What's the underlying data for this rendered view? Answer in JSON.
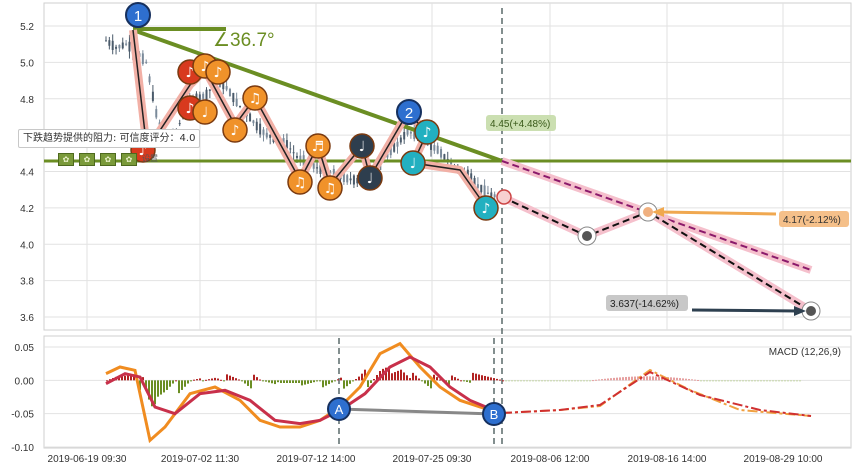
{
  "chart_data": [
    {
      "type": "candlestick",
      "yticks": [
        3.6,
        3.8,
        4.0,
        4.2,
        4.4,
        4.6,
        4.8,
        5.0,
        5.2
      ],
      "ylim": [
        3.52,
        5.27
      ],
      "x_labels": [
        "2019-06-19 09:30",
        "2019-07-02 11:30",
        "2019-07-12 14:00",
        "2019-07-25 09:30",
        "2019-08-06 12:00",
        "2019-08-16 14:00",
        "2019-08-29 10:00"
      ],
      "trend_angle_label": "∠36.7°",
      "resistance_level": 4.45,
      "projections": [
        {
          "label": "4.45(+4.48%)",
          "value": 4.45
        },
        {
          "label": "4.17(-2.12%)",
          "value": 4.17
        },
        {
          "label": "3.637(-14.62%)",
          "value": 3.637
        }
      ],
      "markers": [
        "1",
        "2"
      ],
      "tooltip": "下跌趋势提供的阻力: 可信度评分：4.0",
      "price_series_approx": [
        [
          0,
          5.12
        ],
        [
          1,
          5.08
        ],
        [
          2,
          5.1
        ],
        [
          3,
          5.06
        ],
        [
          4,
          5.0
        ],
        [
          5,
          4.72
        ],
        [
          6,
          4.55
        ],
        [
          7,
          4.62
        ],
        [
          8,
          4.75
        ],
        [
          9,
          4.8
        ],
        [
          10,
          4.82
        ],
        [
          11,
          4.9
        ],
        [
          12,
          4.86
        ],
        [
          13,
          4.78
        ],
        [
          14,
          4.72
        ],
        [
          15,
          4.65
        ],
        [
          16,
          4.6
        ],
        [
          17,
          4.58
        ],
        [
          18,
          4.55
        ],
        [
          19,
          4.48
        ],
        [
          20,
          4.45
        ],
        [
          21,
          4.42
        ],
        [
          22,
          4.4
        ],
        [
          23,
          4.38
        ],
        [
          24,
          4.36
        ],
        [
          25,
          4.35
        ],
        [
          26,
          4.37
        ],
        [
          27,
          4.42
        ],
        [
          28,
          4.5
        ],
        [
          29,
          4.55
        ],
        [
          30,
          4.62
        ],
        [
          31,
          4.6
        ],
        [
          32,
          4.55
        ],
        [
          33,
          4.52
        ],
        [
          34,
          4.46
        ],
        [
          35,
          4.42
        ],
        [
          36,
          4.38
        ],
        [
          37,
          4.32
        ],
        [
          38,
          4.28
        ],
        [
          39,
          4.26
        ]
      ]
    },
    {
      "type": "line",
      "legend": "MACD (12,26,9)",
      "yticks": [
        0.05,
        0.0,
        -0.05,
        -0.1
      ],
      "ylim": [
        -0.1,
        0.06
      ],
      "labels": [
        "A",
        "B"
      ]
    }
  ],
  "ui": {
    "tooltip_text": "下跌趋势提供的阻力: 可信度评分：4.0",
    "settings_label": "设置"
  }
}
